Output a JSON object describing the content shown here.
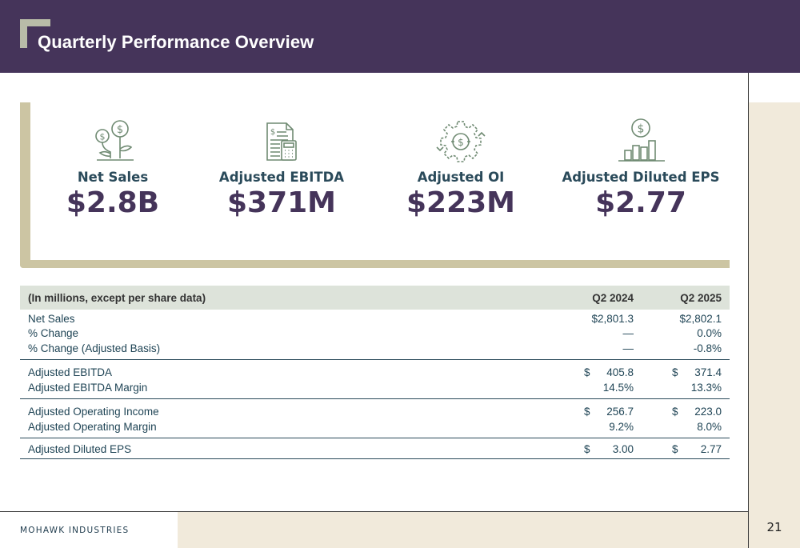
{
  "header": {
    "title": "Quarterly Performance Overview"
  },
  "kpis": [
    {
      "label": "Net Sales",
      "value": "$2.8B",
      "icon": "money-plant-icon"
    },
    {
      "label": "Adjusted EBITDA",
      "value": "$371M",
      "icon": "document-calculator-icon"
    },
    {
      "label": "Adjusted OI",
      "value": "$223M",
      "icon": "gear-dollar-icon"
    },
    {
      "label": "Adjusted Diluted EPS",
      "value": "$2.77",
      "icon": "bar-chart-dollar-icon"
    }
  ],
  "table": {
    "headers": [
      "(In millions, except per share data)",
      "Q2 2024",
      "Q2 2025"
    ],
    "groups": [
      [
        {
          "label": "Net Sales",
          "q2024": "$2,801.3",
          "q2025": "$2,802.1"
        },
        {
          "label": "% Change",
          "q2024": "—",
          "q2025": "0.0%"
        },
        {
          "label": "% Change (Adjusted Basis)",
          "q2024": "—",
          "q2025": "-0.8%"
        }
      ],
      [
        {
          "label": "Adjusted EBITDA",
          "q2024_sym": "$",
          "q2024": "405.8",
          "q2025_sym": "$",
          "q2025": "371.4"
        },
        {
          "label": "Adjusted EBITDA Margin",
          "q2024": "14.5%",
          "q2025": "13.3%"
        }
      ],
      [
        {
          "label": "Adjusted Operating Income",
          "q2024_sym": "$",
          "q2024": "256.7",
          "q2025_sym": "$",
          "q2025": "223.0"
        },
        {
          "label": "Adjusted Operating Margin",
          "q2024": "9.2%",
          "q2025": "8.0%"
        }
      ],
      [
        {
          "label": "Adjusted Diluted EPS",
          "q2024_sym": "$",
          "q2024": "3.00",
          "q2025_sym": "$",
          "q2025": "2.77"
        }
      ]
    ]
  },
  "footer": {
    "company": "MOHAWK INDUSTRIES",
    "page": "21"
  },
  "colors": {
    "header_bg": "#45345a",
    "accent_tan": "#ccc5a3",
    "icon_green": "#6f8a72",
    "table_header_bg": "#dde3da",
    "cream": "#f1eadb"
  }
}
